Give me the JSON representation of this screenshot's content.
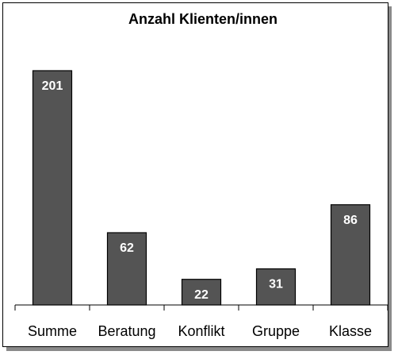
{
  "chart_data": {
    "type": "bar",
    "title": "Anzahl Klienten/innen",
    "categories": [
      "Summe",
      "Beratung",
      "Konflikt",
      "Gruppe",
      "Klasse"
    ],
    "values": [
      201,
      62,
      22,
      31,
      86
    ],
    "color": "#545454"
  }
}
